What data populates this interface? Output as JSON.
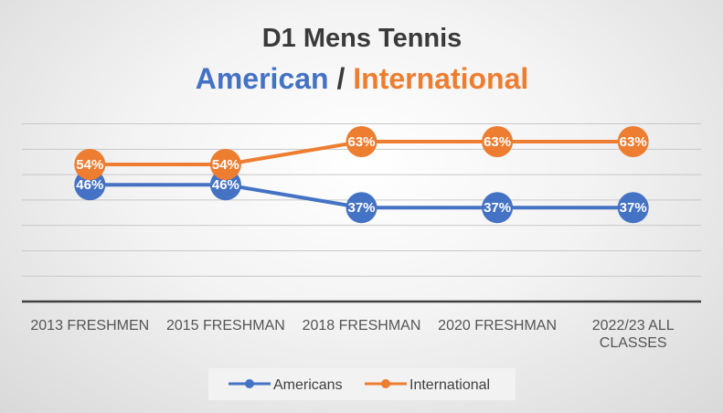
{
  "chart_data": {
    "type": "line",
    "title": "D1 Mens Tennis",
    "subtitle": {
      "part1": "American",
      "separator": " / ",
      "part2": "International"
    },
    "categories": [
      [
        "2013 FRESHMEN"
      ],
      [
        "2015 FRESHMAN"
      ],
      [
        "2018 FRESHMAN"
      ],
      [
        "2020 FRESHMAN"
      ],
      [
        "2022/23 ALL",
        "CLASSES"
      ]
    ],
    "series": [
      {
        "name": "Americans",
        "color": "#4472C4",
        "values": [
          46,
          46,
          37,
          37,
          37
        ],
        "labels": [
          "46%",
          "46%",
          "37%",
          "37%",
          "37%"
        ]
      },
      {
        "name": "International",
        "color": "#ED7D31",
        "values": [
          54,
          54,
          63,
          63,
          63
        ],
        "labels": [
          "54%",
          "54%",
          "63%",
          "63%",
          "63%"
        ]
      }
    ],
    "ylim": [
      0,
      70
    ],
    "grid": true,
    "legend": "bottom",
    "colors": {
      "title": "#3a3a3a",
      "separator": "#3a3a3a",
      "gridline": "#c8c8c8",
      "axis": "#404040"
    }
  }
}
